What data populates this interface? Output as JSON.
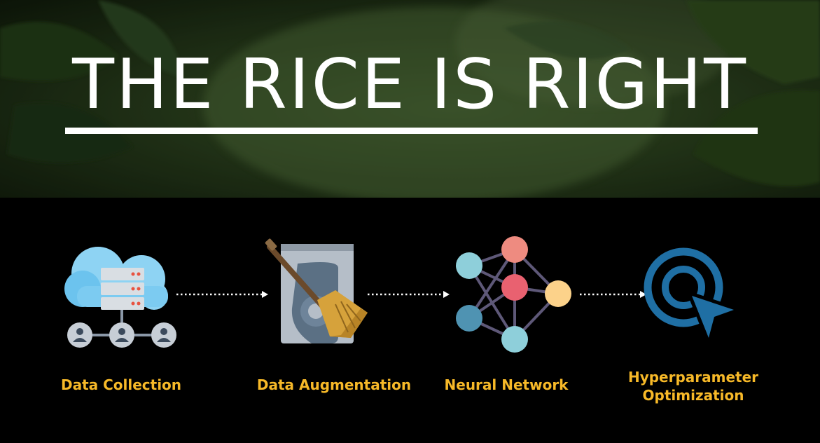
{
  "title": "THE RICE IS RIGHT",
  "colors": {
    "label": "#f7b928",
    "background": "#000000",
    "title": "#ffffff",
    "target_icon": "#1f6fa4"
  },
  "pipeline": [
    {
      "label": "Data Collection",
      "icon": "cloud-server-network-icon"
    },
    {
      "label": "Data Augmentation",
      "icon": "hard-drive-broom-icon"
    },
    {
      "label": "Neural Network",
      "icon": "neural-network-icon"
    },
    {
      "label_line1": "Hyperparameter",
      "label_line2": "Optimization",
      "icon": "target-cursor-icon"
    }
  ]
}
